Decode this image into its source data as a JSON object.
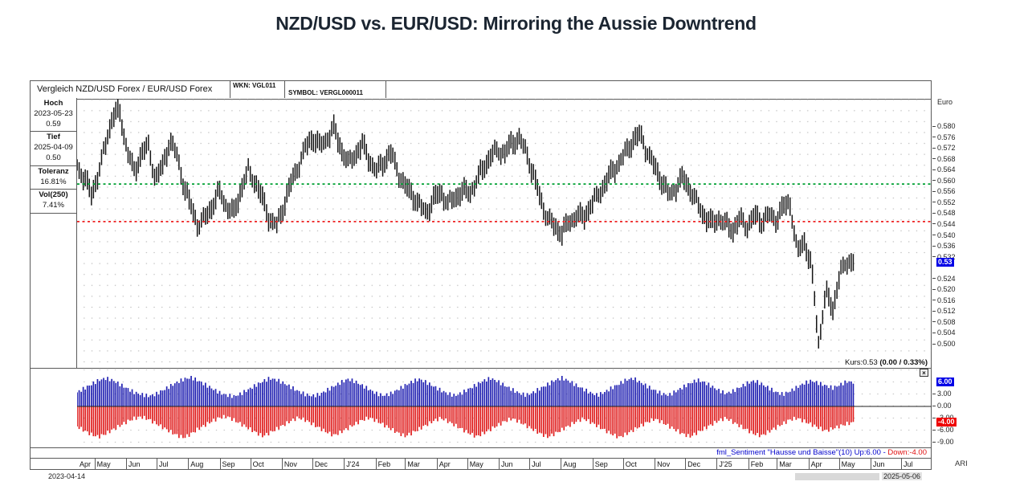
{
  "title": "NZD/USD vs. EUR/USD: Mirroring the Aussie Downtrend",
  "header": {
    "instrument": "Vergleich NZD/USD Forex / EUR/USD Forex",
    "wkn": "WKN: VGL011",
    "symbol": "SYMBOL: VERGL000011"
  },
  "info_panel": {
    "sections": [
      {
        "label": "Hoch",
        "line1": "2023-05-23",
        "line2": "0.59"
      },
      {
        "label": "Tief",
        "line1": "2025-04-09",
        "line2": "0.50"
      },
      {
        "label": "Toleranz",
        "line1": "16.81%"
      },
      {
        "label": "Vol(250)",
        "line1": "7.41%"
      }
    ]
  },
  "price_axis": {
    "title": "Euro",
    "ticks": [
      "0.580",
      "0.576",
      "0.572",
      "0.568",
      "0.564",
      "0.560",
      "0.556",
      "0.552",
      "0.548",
      "0.544",
      "0.540",
      "0.536",
      "0.532",
      "0.524",
      "0.520",
      "0.516",
      "0.512",
      "0.508",
      "0.504",
      "0.500"
    ],
    "current_badge": "0.53",
    "current_value": 0.53
  },
  "kurs_line": {
    "prefix": "Kurs:0.53 ",
    "detail": "(0.00 / 0.33%)"
  },
  "sentiment_axis": {
    "ticks": [
      {
        "value": 3,
        "label": "3.00"
      },
      {
        "value": 0,
        "label": "0.00"
      },
      {
        "value": -3,
        "label": "-3.00"
      },
      {
        "value": -6,
        "label": "-6.00"
      },
      {
        "value": -9,
        "label": "-9.00"
      }
    ],
    "up_badge": {
      "value": 6,
      "label": "6.00"
    },
    "down_badge": {
      "value": -4,
      "label": "-4.00"
    }
  },
  "sentiment_label": {
    "blue": "fml_Sentiment \"Hausse und Baisse\"(10) Up:6.00 - ",
    "red": "Down:-4.00"
  },
  "date_axis": {
    "start_date": "2023-04-14",
    "end_date": "2025-05-06",
    "right_label": "ARI",
    "months": [
      {
        "label": "Apr",
        "day": 0
      },
      {
        "label": "May",
        "day": 17
      },
      {
        "label": "Jun",
        "day": 48
      },
      {
        "label": "Jul",
        "day": 78
      },
      {
        "label": "Aug",
        "day": 109
      },
      {
        "label": "Sep",
        "day": 140
      },
      {
        "label": "Oct",
        "day": 170
      },
      {
        "label": "Nov",
        "day": 201
      },
      {
        "label": "Dec",
        "day": 231
      },
      {
        "label": "J'24",
        "day": 262
      },
      {
        "label": "Feb",
        "day": 293
      },
      {
        "label": "Mar",
        "day": 322
      },
      {
        "label": "Apr",
        "day": 353
      },
      {
        "label": "May",
        "day": 383
      },
      {
        "label": "Jun",
        "day": 414
      },
      {
        "label": "Jul",
        "day": 444
      },
      {
        "label": "Aug",
        "day": 475
      },
      {
        "label": "Sep",
        "day": 506
      },
      {
        "label": "Oct",
        "day": 536
      },
      {
        "label": "Nov",
        "day": 567
      },
      {
        "label": "Dec",
        "day": 597
      },
      {
        "label": "J'25",
        "day": 628
      },
      {
        "label": "Feb",
        "day": 659
      },
      {
        "label": "Mar",
        "day": 687
      },
      {
        "label": "Apr",
        "day": 718
      },
      {
        "label": "May",
        "day": 748
      },
      {
        "label": "Jun",
        "day": 779
      },
      {
        "label": "Jul",
        "day": 809
      }
    ]
  },
  "icons": {
    "close": "×"
  },
  "colors": {
    "band_green": "#00a033",
    "band_red": "#ee2222",
    "price_bars": "#151515",
    "hist_blue": "#2222b2",
    "hist_red": "#e01f1f",
    "badge_blue": "#0000e6",
    "badge_red": "#ee0000"
  },
  "chart_data": [
    {
      "type": "line",
      "title": "Vergleich NZD/USD Forex / EUR/USD Forex (OHLC bars)",
      "ylabel": "Euro",
      "ylim": [
        0.492,
        0.589
      ],
      "x_start": "2023-04-14",
      "x_end": "2025-05-06",
      "interval": "weekly",
      "high": {
        "date": "2023-05-23",
        "value": 0.59
      },
      "low": {
        "date": "2025-04-09",
        "value": 0.5
      },
      "last": 0.53,
      "upper_band": 0.559,
      "lower_band": 0.5452,
      "grid": "dotted",
      "values": [
        0.566,
        0.561,
        0.555,
        0.563,
        0.574,
        0.584,
        0.585,
        0.572,
        0.563,
        0.57,
        0.573,
        0.561,
        0.565,
        0.575,
        0.57,
        0.558,
        0.55,
        0.544,
        0.547,
        0.551,
        0.556,
        0.551,
        0.548,
        0.557,
        0.564,
        0.56,
        0.553,
        0.546,
        0.544,
        0.551,
        0.559,
        0.566,
        0.572,
        0.576,
        0.573,
        0.576,
        0.579,
        0.572,
        0.567,
        0.57,
        0.573,
        0.568,
        0.564,
        0.567,
        0.57,
        0.564,
        0.558,
        0.555,
        0.551,
        0.549,
        0.553,
        0.556,
        0.552,
        0.554,
        0.556,
        0.556,
        0.56,
        0.565,
        0.569,
        0.572,
        0.57,
        0.574,
        0.576,
        0.571,
        0.562,
        0.553,
        0.547,
        0.543,
        0.541,
        0.545,
        0.548,
        0.546,
        0.551,
        0.555,
        0.559,
        0.563,
        0.567,
        0.571,
        0.575,
        0.577,
        0.571,
        0.565,
        0.56,
        0.555,
        0.558,
        0.561,
        0.557,
        0.552,
        0.547,
        0.544,
        0.547,
        0.544,
        0.542,
        0.546,
        0.544,
        0.547,
        0.545,
        0.548,
        0.546,
        0.55,
        0.552,
        0.534,
        0.538,
        0.528,
        0.501,
        0.519,
        0.513,
        0.526,
        0.531,
        0.53
      ]
    },
    {
      "type": "bar",
      "title": "fml_Sentiment \"Hausse und Baisse\"(10)",
      "ylim": [
        -11,
        9.5
      ],
      "interval": "weekly",
      "current": {
        "up": 6.0,
        "down": -4.0
      },
      "series": [
        {
          "name": "Up",
          "values": [
            3.5,
            4.5,
            5.5,
            6.5,
            7.0,
            6.5,
            5.5,
            4.5,
            3.5,
            3.0,
            2.6,
            3.0,
            4.0,
            5.0,
            6.0,
            6.8,
            7.2,
            6.4,
            5.4,
            4.4,
            3.4,
            2.8,
            2.5,
            3.2,
            4.2,
            5.2,
            6.2,
            7.0,
            6.6,
            5.8,
            4.8,
            3.8,
            3.0,
            2.6,
            3.0,
            4.0,
            5.0,
            6.0,
            6.8,
            6.2,
            5.2,
            4.2,
            3.2,
            2.7,
            3.2,
            4.2,
            5.2,
            6.2,
            6.8,
            6.0,
            5.0,
            4.0,
            3.2,
            2.7,
            3.4,
            4.4,
            5.4,
            6.4,
            7.0,
            6.2,
            5.2,
            4.2,
            3.3,
            2.8,
            3.5,
            4.5,
            5.5,
            6.5,
            7.1,
            6.3,
            5.3,
            4.3,
            3.4,
            2.8,
            3.6,
            4.6,
            5.6,
            6.6,
            7.0,
            6.0,
            5.0,
            4.0,
            3.2,
            2.8,
            3.8,
            4.8,
            5.8,
            6.6,
            6.0,
            5.0,
            4.0,
            3.2,
            3.8,
            4.8,
            5.8,
            6.4,
            5.6,
            4.6,
            3.6,
            3.0,
            3.8,
            4.8,
            5.8,
            6.4,
            5.8,
            5.2,
            4.6,
            5.4,
            6.2,
            6.0
          ]
        },
        {
          "name": "Down",
          "values": [
            -5.0,
            -6.0,
            -7.0,
            -7.6,
            -6.8,
            -5.8,
            -4.8,
            -3.8,
            -3.0,
            -2.6,
            -3.2,
            -4.2,
            -5.2,
            -6.2,
            -7.2,
            -7.8,
            -6.8,
            -5.6,
            -4.6,
            -3.6,
            -2.8,
            -2.5,
            -3.4,
            -4.4,
            -5.4,
            -6.4,
            -7.4,
            -6.6,
            -5.6,
            -4.6,
            -3.6,
            -2.8,
            -3.4,
            -4.4,
            -5.4,
            -6.4,
            -7.2,
            -6.4,
            -5.4,
            -4.4,
            -3.4,
            -2.8,
            -3.6,
            -4.6,
            -5.6,
            -6.6,
            -7.4,
            -6.6,
            -5.6,
            -4.6,
            -3.6,
            -2.9,
            -3.7,
            -4.7,
            -5.7,
            -6.7,
            -7.5,
            -6.7,
            -5.7,
            -4.7,
            -3.7,
            -3.0,
            -3.8,
            -4.8,
            -5.8,
            -6.8,
            -7.6,
            -6.8,
            -5.8,
            -4.8,
            -3.8,
            -3.0,
            -3.9,
            -4.9,
            -5.9,
            -6.9,
            -7.7,
            -6.9,
            -5.9,
            -4.9,
            -3.9,
            -3.1,
            -3.9,
            -4.9,
            -5.9,
            -6.9,
            -7.5,
            -6.5,
            -5.5,
            -4.5,
            -3.5,
            -2.9,
            -3.9,
            -4.9,
            -5.9,
            -6.9,
            -7.3,
            -6.3,
            -5.3,
            -4.3,
            -3.3,
            -2.9,
            -3.7,
            -4.5,
            -5.3,
            -6.1,
            -5.5,
            -4.9,
            -4.3,
            -4.0
          ]
        }
      ]
    }
  ]
}
